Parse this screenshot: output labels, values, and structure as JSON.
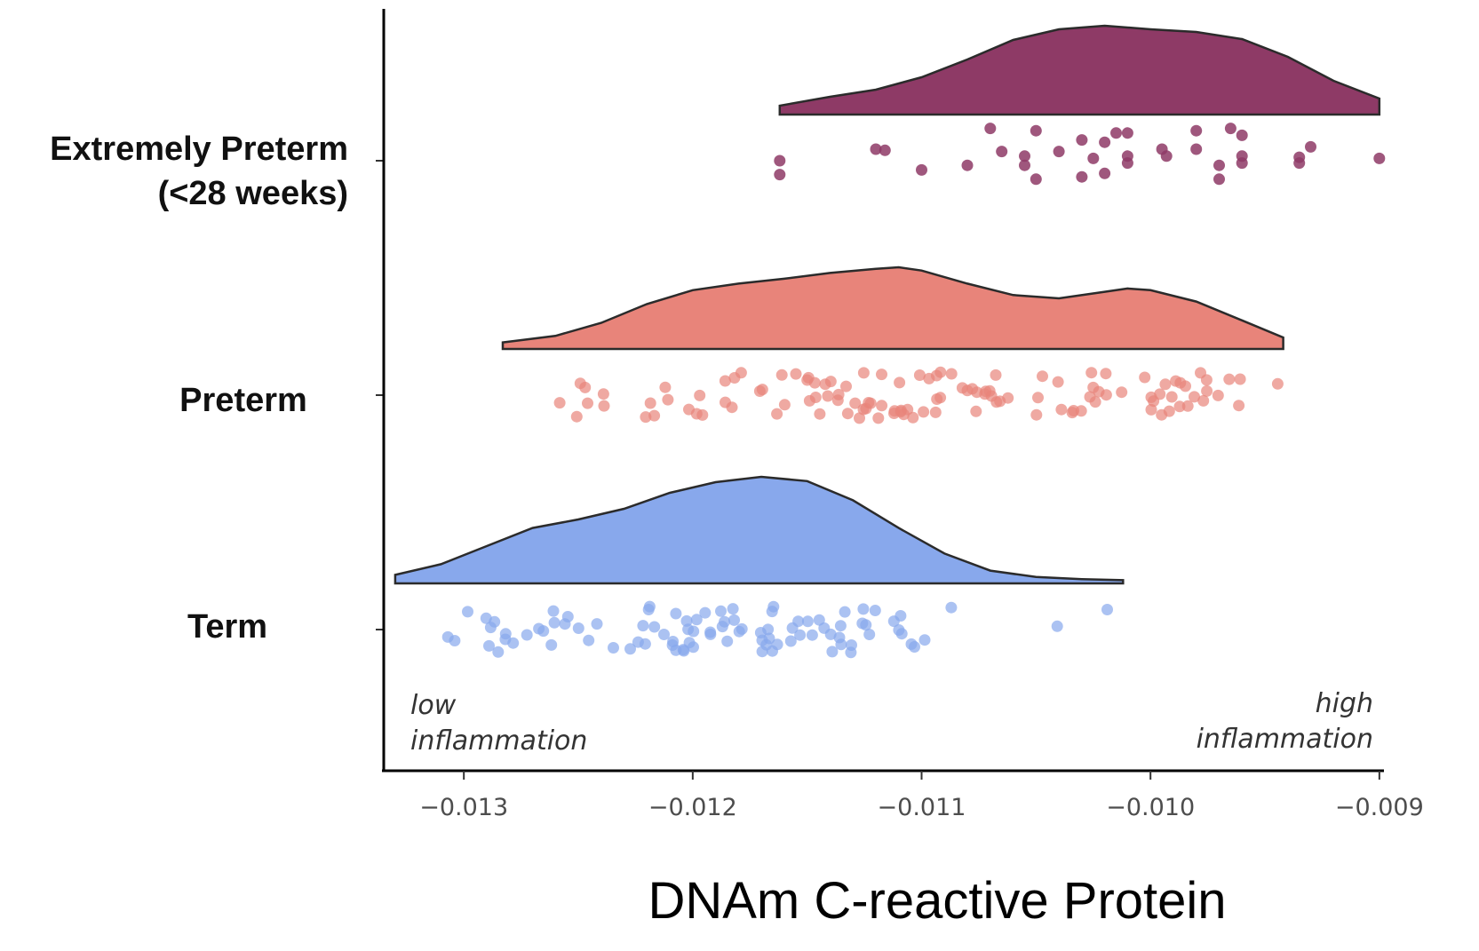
{
  "chart_data": {
    "type": "raincloud",
    "title": "",
    "xlabel": "DNAm C-reactive Protein",
    "ylabel": "",
    "xlim": [
      -0.01335,
      -0.00898
    ],
    "x_ticks": [
      -0.013,
      -0.012,
      -0.011,
      -0.01,
      -0.009
    ],
    "x_tick_labels": [
      "−0.013",
      "−0.012",
      "−0.011",
      "−0.010",
      "−0.009"
    ],
    "annotations": {
      "low": [
        "low",
        "inflammation"
      ],
      "high": [
        "high",
        "inflammation"
      ]
    },
    "groups": [
      {
        "name_lines": [
          "Extremely Preterm",
          "(<28 weeks)"
        ],
        "color": "#8e3a66",
        "range": [
          -0.01162,
          -0.009
        ],
        "density": [
          [
            -0.01162,
            0.1
          ],
          [
            -0.0114,
            0.2
          ],
          [
            -0.0112,
            0.28
          ],
          [
            -0.011,
            0.42
          ],
          [
            -0.0108,
            0.62
          ],
          [
            -0.0106,
            0.84
          ],
          [
            -0.0104,
            0.96
          ],
          [
            -0.0102,
            1.0
          ],
          [
            -0.01,
            0.96
          ],
          [
            -0.0098,
            0.93
          ],
          [
            -0.0096,
            0.85
          ],
          [
            -0.0094,
            0.65
          ],
          [
            -0.0092,
            0.38
          ],
          [
            -0.009,
            0.18
          ]
        ],
        "points": [
          [
            -0.01162,
            0.0
          ],
          [
            -0.01162,
            0.6
          ],
          [
            -0.0112,
            -0.5
          ],
          [
            -0.01116,
            -0.45
          ],
          [
            -0.011,
            0.4
          ],
          [
            -0.0108,
            0.2
          ],
          [
            -0.0107,
            -1.4
          ],
          [
            -0.01065,
            -0.4
          ],
          [
            -0.01055,
            0.2
          ],
          [
            -0.01055,
            -0.2
          ],
          [
            -0.0105,
            0.8
          ],
          [
            -0.0105,
            -1.3
          ],
          [
            -0.0104,
            -0.4
          ],
          [
            -0.0103,
            -0.9
          ],
          [
            -0.0103,
            0.7
          ],
          [
            -0.01025,
            -0.1
          ],
          [
            -0.0102,
            -0.8
          ],
          [
            -0.0102,
            0.55
          ],
          [
            -0.0101,
            -1.2
          ],
          [
            -0.01015,
            -1.2
          ],
          [
            -0.0101,
            -0.2
          ],
          [
            -0.0101,
            0.1
          ],
          [
            -0.00995,
            -0.5
          ],
          [
            -0.00993,
            -0.2
          ],
          [
            -0.0098,
            -1.3
          ],
          [
            -0.0098,
            -0.5
          ],
          [
            -0.0097,
            0.8
          ],
          [
            -0.0097,
            0.2
          ],
          [
            -0.00965,
            -1.4
          ],
          [
            -0.0096,
            -1.1
          ],
          [
            -0.0096,
            0.1
          ],
          [
            -0.0096,
            -0.2
          ],
          [
            -0.00935,
            -0.15
          ],
          [
            -0.00935,
            0.1
          ],
          [
            -0.0093,
            -0.6
          ],
          [
            -0.009,
            -0.1
          ]
        ]
      },
      {
        "name_lines": [
          "Preterm"
        ],
        "color": "#e8847a",
        "range": [
          -0.01283,
          -0.00942
        ],
        "density": [
          [
            -0.01283,
            0.08
          ],
          [
            -0.0126,
            0.16
          ],
          [
            -0.0124,
            0.32
          ],
          [
            -0.0122,
            0.55
          ],
          [
            -0.012,
            0.72
          ],
          [
            -0.0118,
            0.8
          ],
          [
            -0.0116,
            0.86
          ],
          [
            -0.0114,
            0.93
          ],
          [
            -0.0112,
            0.98
          ],
          [
            -0.0111,
            1.0
          ],
          [
            -0.011,
            0.96
          ],
          [
            -0.0108,
            0.8
          ],
          [
            -0.0106,
            0.66
          ],
          [
            -0.0104,
            0.62
          ],
          [
            -0.0102,
            0.7
          ],
          [
            -0.0101,
            0.74
          ],
          [
            -0.01,
            0.72
          ],
          [
            -0.0098,
            0.58
          ],
          [
            -0.0096,
            0.35
          ],
          [
            -0.00942,
            0.14
          ]
        ]
      },
      {
        "name_lines": [
          "Term"
        ],
        "color": "#88a8ec",
        "range": [
          -0.0133,
          -0.01012
        ],
        "density": [
          [
            -0.0133,
            0.08
          ],
          [
            -0.0131,
            0.18
          ],
          [
            -0.0129,
            0.35
          ],
          [
            -0.0127,
            0.52
          ],
          [
            -0.0125,
            0.6
          ],
          [
            -0.0123,
            0.7
          ],
          [
            -0.0121,
            0.85
          ],
          [
            -0.0119,
            0.95
          ],
          [
            -0.0117,
            1.0
          ],
          [
            -0.0115,
            0.96
          ],
          [
            -0.0113,
            0.78
          ],
          [
            -0.0111,
            0.52
          ],
          [
            -0.0109,
            0.28
          ],
          [
            -0.0107,
            0.12
          ],
          [
            -0.0105,
            0.06
          ],
          [
            -0.0103,
            0.04
          ],
          [
            -0.01012,
            0.03
          ]
        ]
      }
    ]
  }
}
